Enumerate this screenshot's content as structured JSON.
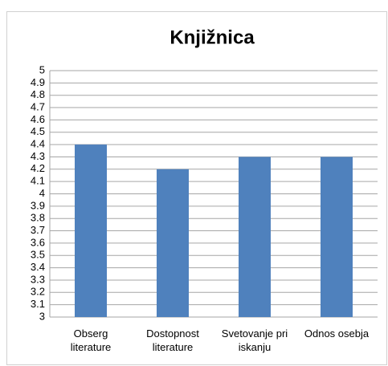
{
  "chart_data": {
    "type": "bar",
    "title": "Knjižnica",
    "categories": [
      "Obserg literature",
      "Dostopnost literature",
      "Svetovanje pri iskanju",
      "Odnos osebja"
    ],
    "values": [
      4.4,
      4.2,
      4.3,
      4.3
    ],
    "color": "#4f81bd",
    "ylim": [
      3,
      5
    ],
    "yticks": [
      3,
      3.1,
      3.2,
      3.3,
      3.4,
      3.5,
      3.6,
      3.7,
      3.8,
      3.9,
      4,
      4.1,
      4.2,
      4.3,
      4.4,
      4.5,
      4.6,
      4.7,
      4.8,
      4.9,
      5
    ],
    "grid": true
  }
}
